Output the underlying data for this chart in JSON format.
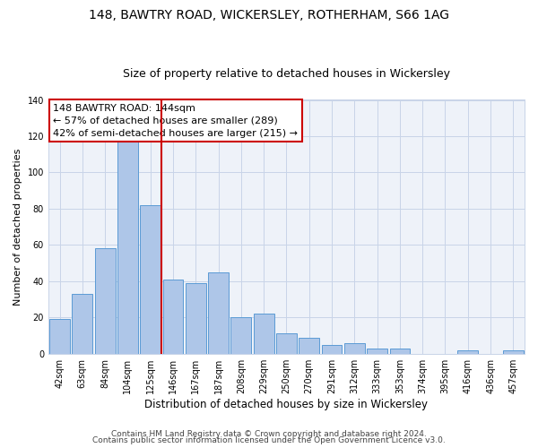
{
  "title1": "148, BAWTRY ROAD, WICKERSLEY, ROTHERHAM, S66 1AG",
  "title2": "Size of property relative to detached houses in Wickersley",
  "xlabel": "Distribution of detached houses by size in Wickersley",
  "ylabel": "Number of detached properties",
  "bar_labels": [
    "42sqm",
    "63sqm",
    "84sqm",
    "104sqm",
    "125sqm",
    "146sqm",
    "167sqm",
    "187sqm",
    "208sqm",
    "229sqm",
    "250sqm",
    "270sqm",
    "291sqm",
    "312sqm",
    "333sqm",
    "353sqm",
    "374sqm",
    "395sqm",
    "416sqm",
    "436sqm",
    "457sqm"
  ],
  "bar_values": [
    19,
    33,
    58,
    118,
    82,
    41,
    39,
    45,
    20,
    22,
    11,
    9,
    5,
    6,
    3,
    3,
    0,
    0,
    2,
    0,
    2
  ],
  "bar_color": "#aec6e8",
  "bar_edgecolor": "#5b9bd5",
  "vline_color": "#cc0000",
  "vline_index": 5,
  "annotation_text_line1": "148 BAWTRY ROAD: 144sqm",
  "annotation_text_line2": "← 57% of detached houses are smaller (289)",
  "annotation_text_line3": "42% of semi-detached houses are larger (215) →",
  "box_edgecolor": "#cc0000",
  "ylim": [
    0,
    140
  ],
  "yticks": [
    0,
    20,
    40,
    60,
    80,
    100,
    120,
    140
  ],
  "footnote1": "Contains HM Land Registry data © Crown copyright and database right 2024.",
  "footnote2": "Contains public sector information licensed under the Open Government Licence v3.0.",
  "bg_color": "#eef2f9",
  "grid_color": "#c8d4e8",
  "title1_fontsize": 10,
  "title2_fontsize": 9,
  "xlabel_fontsize": 8.5,
  "ylabel_fontsize": 8,
  "tick_fontsize": 7,
  "annotation_fontsize": 8,
  "footnote_fontsize": 6.5
}
